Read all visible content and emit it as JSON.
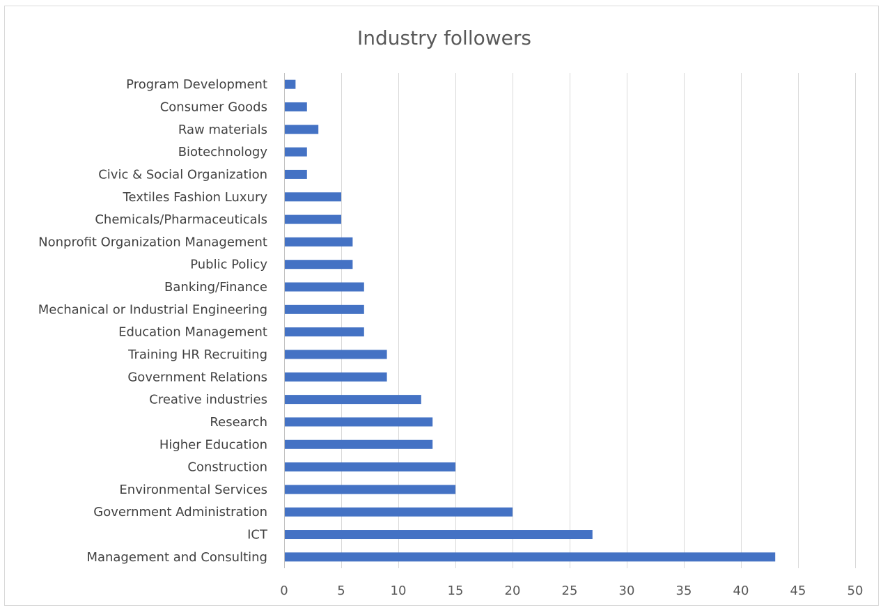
{
  "chart_data": {
    "type": "bar",
    "orientation": "horizontal",
    "title": "Industry followers",
    "xlabel": "",
    "ylabel": "",
    "xlim": [
      0,
      50
    ],
    "x_ticks": [
      0,
      5,
      10,
      15,
      20,
      25,
      30,
      35,
      40,
      45,
      50
    ],
    "grid": true,
    "legend": "none",
    "bar_color": "#4472C4",
    "categories": [
      "Management and Consulting",
      "ICT",
      "Government Administration",
      "Environmental Services",
      "Construction",
      "Higher Education",
      "Research",
      "Creative industries",
      "Government Relations",
      "Training  HR Recruiting ",
      "Education Management",
      "Mechanical or Industrial Engineering",
      "Banking/Finance",
      "Public Policy",
      "Nonprofit Organization Management",
      "Chemicals/Pharmaceuticals",
      "Textiles Fashion Luxury ",
      "Civic & Social Organization",
      "Biotechnology",
      "Raw materials",
      "Consumer Goods",
      "Program Development"
    ],
    "values": [
      43,
      27,
      20,
      15,
      15,
      13,
      13,
      12,
      9,
      9,
      7,
      7,
      7,
      6,
      6,
      5,
      5,
      2,
      2,
      3,
      2,
      1
    ]
  }
}
